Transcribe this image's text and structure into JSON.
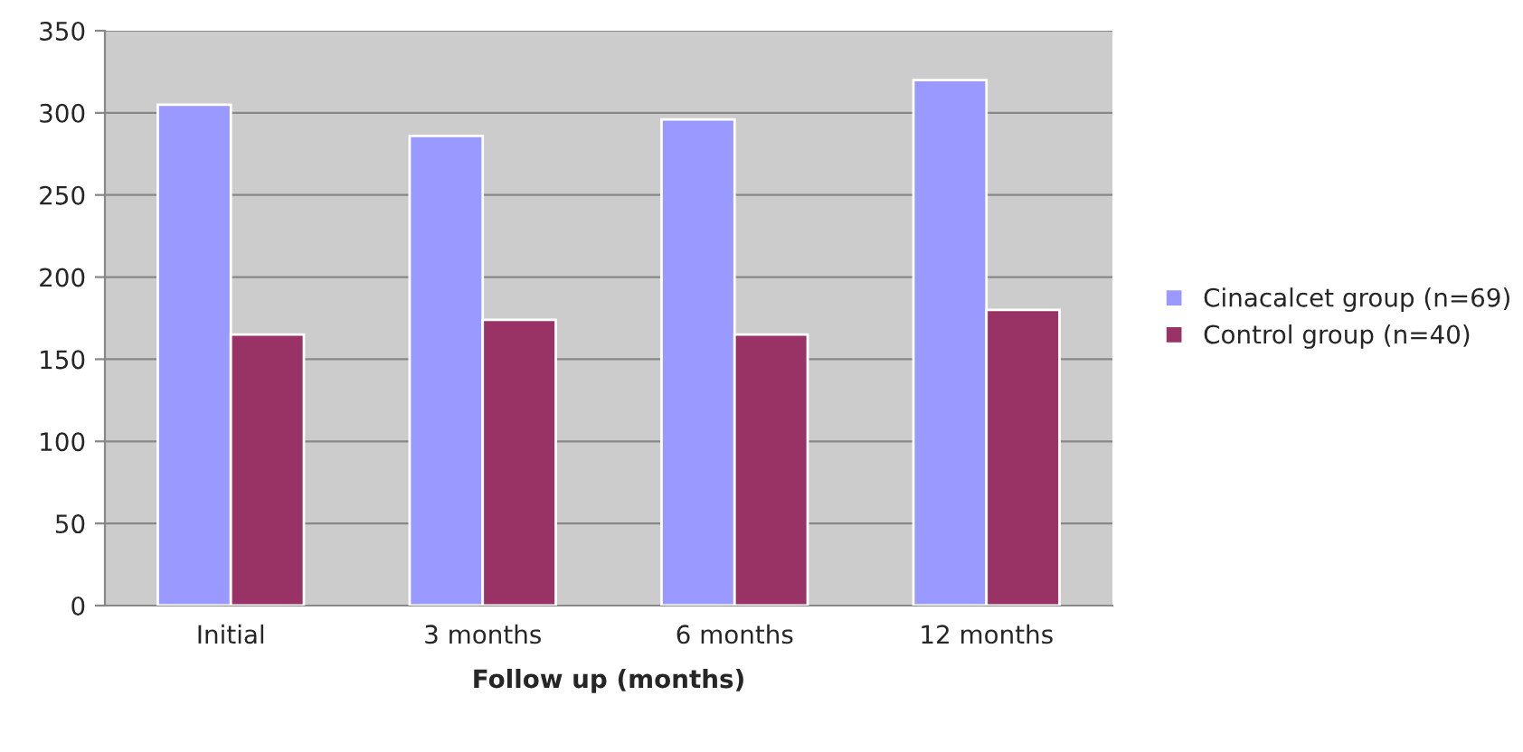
{
  "chart_data": {
    "type": "bar",
    "xlabel": "Follow up (months)",
    "categories": [
      "Initial",
      "3 months",
      "6 months",
      "12 months"
    ],
    "series": [
      {
        "name": "Cinacalcet group (n=69)",
        "color": "#9999ff",
        "values": [
          305,
          286,
          296,
          320
        ]
      },
      {
        "name": "Control group (n=40)",
        "color": "#993366",
        "values": [
          165,
          174,
          165,
          180
        ]
      }
    ],
    "ylim": [
      0,
      350
    ],
    "yticks": [
      0,
      50,
      100,
      150,
      200,
      250,
      300,
      350
    ],
    "grid": "y",
    "legend": "right"
  }
}
